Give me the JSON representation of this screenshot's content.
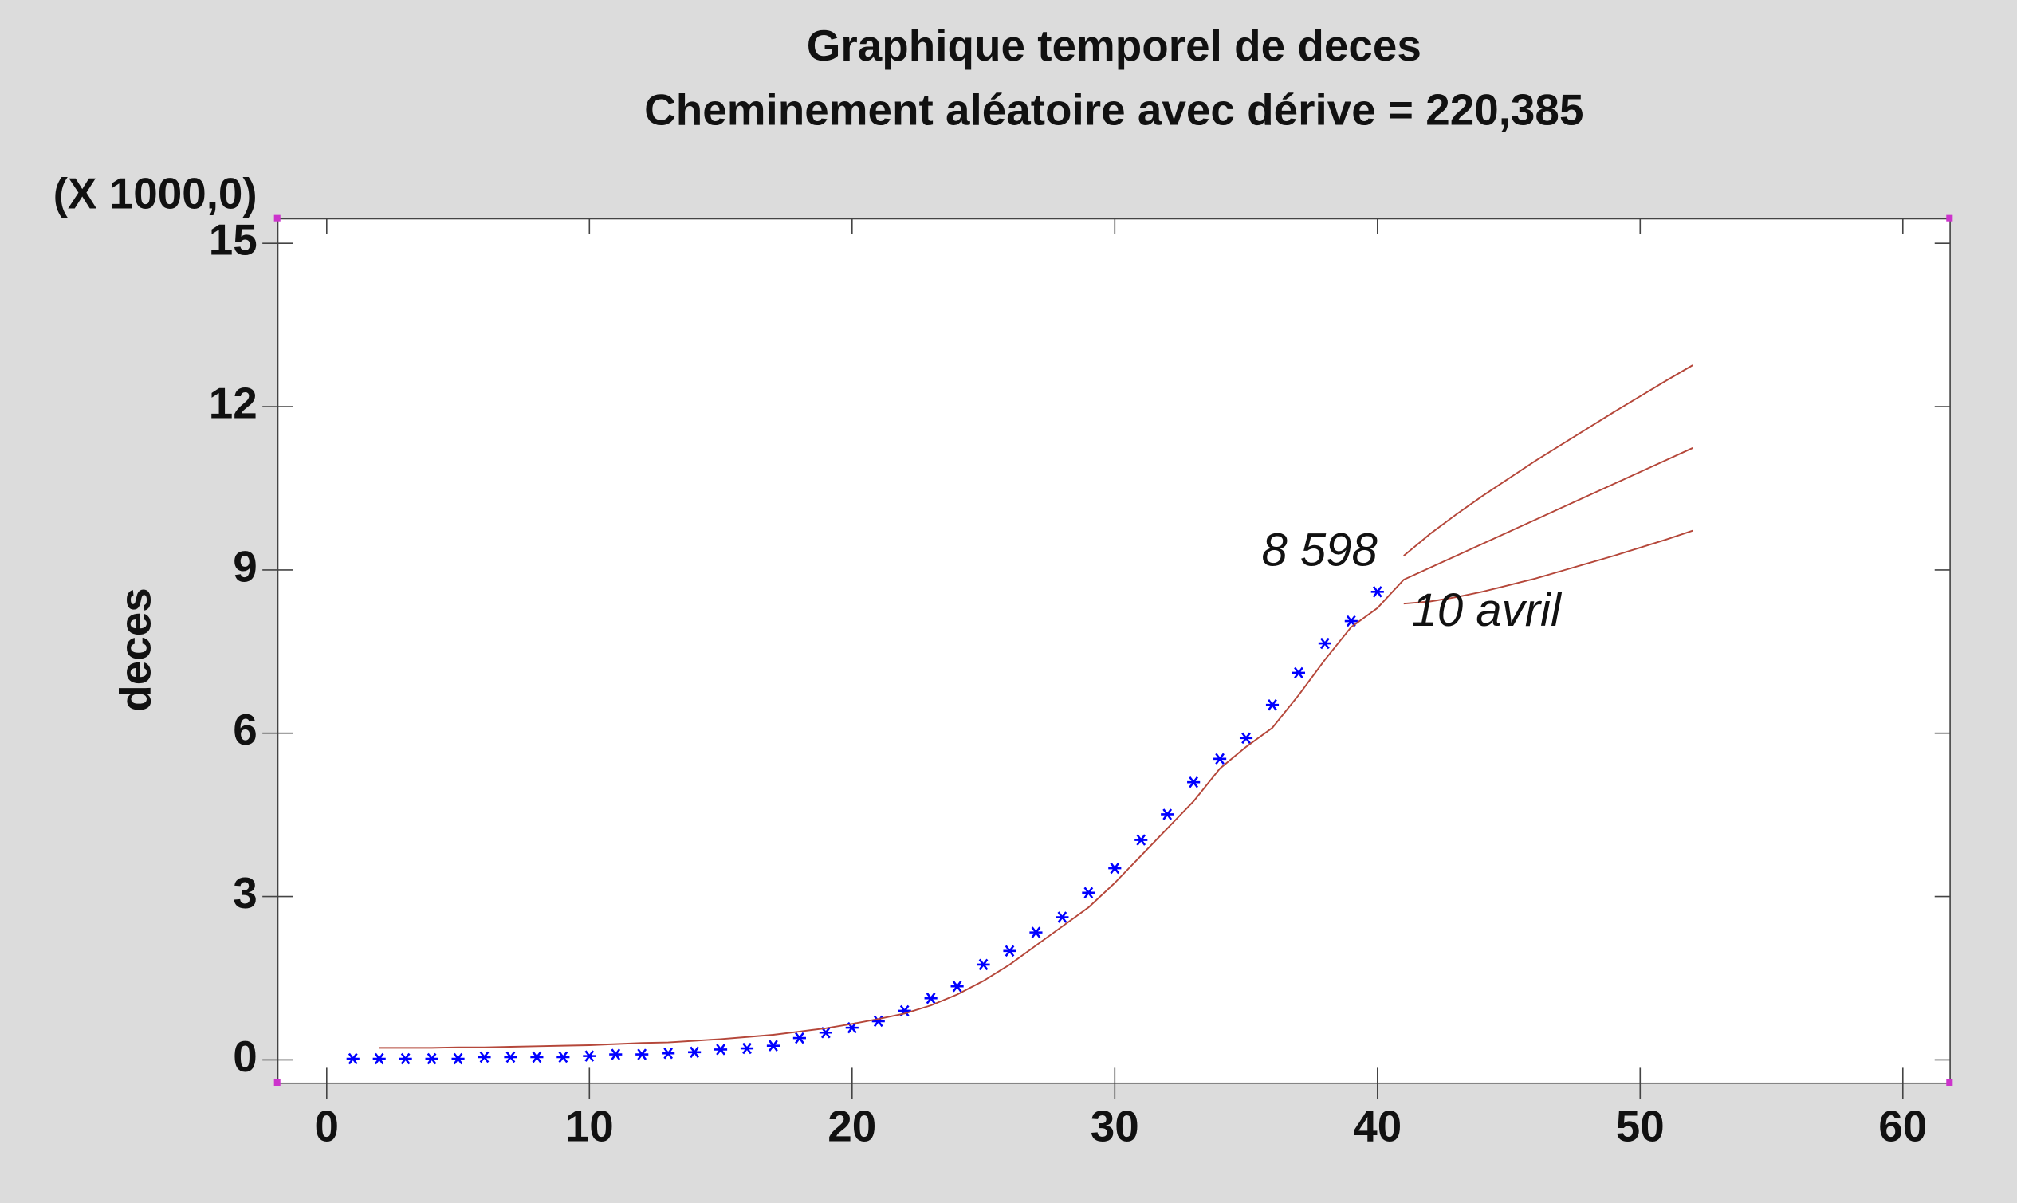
{
  "chart_data": {
    "type": "scatter",
    "title": "Graphique temporel de deces",
    "subtitle": "Cheminement aléatoire avec dérive = 220,385",
    "y_scale_label": "(X 1000,0)",
    "y_label": "deces",
    "xlim": [
      -1.86,
      61.8
    ],
    "ylim": [
      -0.43,
      15.45
    ],
    "xticks": [
      0,
      10,
      20,
      30,
      40,
      50,
      60
    ],
    "yticks": [
      0,
      3,
      6,
      9,
      12,
      15
    ],
    "annotations": [
      {
        "text": "8 598",
        "x": 40,
        "y": 9.3
      },
      {
        "text": "10 avril",
        "x": 41.3,
        "y": 8.2
      }
    ],
    "series": [
      {
        "kind": "points",
        "color": "#0000ff",
        "x": [
          1,
          2,
          3,
          4,
          5,
          6,
          7,
          8,
          9,
          10,
          11,
          12,
          13,
          14,
          15,
          16,
          17,
          18,
          19,
          20,
          21,
          22,
          23,
          24,
          25,
          26,
          27,
          28,
          29,
          30,
          31,
          32,
          33,
          34,
          35,
          36,
          37,
          38,
          39,
          40
        ],
        "values": [
          0.02,
          0.02,
          0.02,
          0.02,
          0.02,
          0.05,
          0.05,
          0.05,
          0.05,
          0.07,
          0.1,
          0.1,
          0.12,
          0.14,
          0.19,
          0.21,
          0.26,
          0.4,
          0.5,
          0.59,
          0.71,
          0.9,
          1.13,
          1.35,
          1.75,
          2.0,
          2.34,
          2.62,
          3.07,
          3.52,
          4.04,
          4.51,
          5.1,
          5.53,
          5.91,
          6.52,
          7.11,
          7.65,
          8.06,
          8.598
        ]
      },
      {
        "kind": "line",
        "color": "#b5473a",
        "x": [
          2,
          3,
          4,
          5,
          6,
          7,
          8,
          9,
          10,
          11,
          12,
          13,
          14,
          15,
          16,
          17,
          18,
          19,
          20,
          21,
          22,
          23,
          24,
          25,
          26,
          27,
          28,
          29,
          30,
          31,
          32,
          33,
          34,
          35,
          36,
          37,
          38,
          39,
          40
        ],
        "values": [
          0.22,
          0.22,
          0.22,
          0.23,
          0.23,
          0.24,
          0.25,
          0.26,
          0.27,
          0.29,
          0.31,
          0.32,
          0.35,
          0.38,
          0.42,
          0.46,
          0.52,
          0.58,
          0.66,
          0.75,
          0.85,
          1.0,
          1.2,
          1.45,
          1.75,
          2.1,
          2.45,
          2.8,
          3.25,
          3.75,
          4.25,
          4.75,
          5.35,
          5.75,
          6.1,
          6.7,
          7.35,
          7.95,
          8.3
        ]
      },
      {
        "kind": "line",
        "color": "#b5473a",
        "x": [
          40,
          41,
          42,
          43,
          44,
          45,
          46,
          47,
          48,
          49,
          50,
          51,
          52
        ],
        "values": [
          8.3,
          8.82,
          9.04,
          9.26,
          9.48,
          9.7,
          9.92,
          10.14,
          10.36,
          10.58,
          10.8,
          11.02,
          11.24
        ]
      },
      {
        "kind": "line",
        "color": "#b5473a",
        "x": [
          41,
          42,
          43,
          44,
          45,
          46,
          47,
          48,
          49,
          50,
          51,
          52
        ],
        "values": [
          9.26,
          9.66,
          10.02,
          10.36,
          10.68,
          11.0,
          11.3,
          11.6,
          11.9,
          12.19,
          12.48,
          12.76
        ]
      },
      {
        "kind": "line",
        "color": "#b5473a",
        "x": [
          41,
          42,
          43,
          44,
          45,
          46,
          47,
          48,
          49,
          50,
          51,
          52
        ],
        "values": [
          8.38,
          8.42,
          8.5,
          8.6,
          8.72,
          8.84,
          8.98,
          9.12,
          9.26,
          9.41,
          9.56,
          9.72
        ]
      }
    ]
  }
}
